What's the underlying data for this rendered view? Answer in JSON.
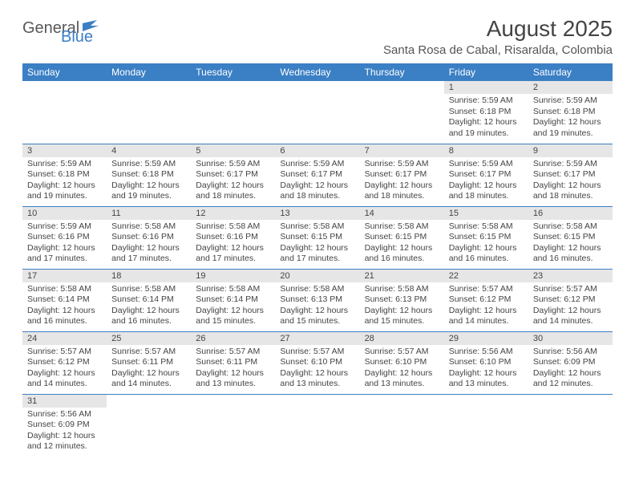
{
  "logo": {
    "word1": "General",
    "word2": "Blue"
  },
  "header": {
    "month_title": "August 2025",
    "location": "Santa Rosa de Cabal, Risaralda, Colombia"
  },
  "colors": {
    "brand_blue": "#3b7fc4",
    "header_row_bg": "#3b7fc4",
    "header_row_text": "#ffffff",
    "daynum_bg": "#e6e6e6",
    "row_divider": "#3b7fc4",
    "body_text": "#444444",
    "logo_gray": "#585858",
    "background": "#ffffff"
  },
  "typography": {
    "title_fontsize_pt": 21,
    "location_fontsize_pt": 11,
    "weekday_fontsize_pt": 9,
    "daynum_fontsize_pt": 8,
    "cell_fontsize_pt": 8
  },
  "calendar": {
    "weekdays": [
      "Sunday",
      "Monday",
      "Tuesday",
      "Wednesday",
      "Thursday",
      "Friday",
      "Saturday"
    ],
    "first_weekday_index": 5,
    "days": [
      {
        "n": 1,
        "sunrise": "5:59 AM",
        "sunset": "6:18 PM",
        "daylight": "12 hours and 19 minutes."
      },
      {
        "n": 2,
        "sunrise": "5:59 AM",
        "sunset": "6:18 PM",
        "daylight": "12 hours and 19 minutes."
      },
      {
        "n": 3,
        "sunrise": "5:59 AM",
        "sunset": "6:18 PM",
        "daylight": "12 hours and 19 minutes."
      },
      {
        "n": 4,
        "sunrise": "5:59 AM",
        "sunset": "6:18 PM",
        "daylight": "12 hours and 19 minutes."
      },
      {
        "n": 5,
        "sunrise": "5:59 AM",
        "sunset": "6:17 PM",
        "daylight": "12 hours and 18 minutes."
      },
      {
        "n": 6,
        "sunrise": "5:59 AM",
        "sunset": "6:17 PM",
        "daylight": "12 hours and 18 minutes."
      },
      {
        "n": 7,
        "sunrise": "5:59 AM",
        "sunset": "6:17 PM",
        "daylight": "12 hours and 18 minutes."
      },
      {
        "n": 8,
        "sunrise": "5:59 AM",
        "sunset": "6:17 PM",
        "daylight": "12 hours and 18 minutes."
      },
      {
        "n": 9,
        "sunrise": "5:59 AM",
        "sunset": "6:17 PM",
        "daylight": "12 hours and 18 minutes."
      },
      {
        "n": 10,
        "sunrise": "5:59 AM",
        "sunset": "6:16 PM",
        "daylight": "12 hours and 17 minutes."
      },
      {
        "n": 11,
        "sunrise": "5:58 AM",
        "sunset": "6:16 PM",
        "daylight": "12 hours and 17 minutes."
      },
      {
        "n": 12,
        "sunrise": "5:58 AM",
        "sunset": "6:16 PM",
        "daylight": "12 hours and 17 minutes."
      },
      {
        "n": 13,
        "sunrise": "5:58 AM",
        "sunset": "6:15 PM",
        "daylight": "12 hours and 17 minutes."
      },
      {
        "n": 14,
        "sunrise": "5:58 AM",
        "sunset": "6:15 PM",
        "daylight": "12 hours and 16 minutes."
      },
      {
        "n": 15,
        "sunrise": "5:58 AM",
        "sunset": "6:15 PM",
        "daylight": "12 hours and 16 minutes."
      },
      {
        "n": 16,
        "sunrise": "5:58 AM",
        "sunset": "6:15 PM",
        "daylight": "12 hours and 16 minutes."
      },
      {
        "n": 17,
        "sunrise": "5:58 AM",
        "sunset": "6:14 PM",
        "daylight": "12 hours and 16 minutes."
      },
      {
        "n": 18,
        "sunrise": "5:58 AM",
        "sunset": "6:14 PM",
        "daylight": "12 hours and 16 minutes."
      },
      {
        "n": 19,
        "sunrise": "5:58 AM",
        "sunset": "6:14 PM",
        "daylight": "12 hours and 15 minutes."
      },
      {
        "n": 20,
        "sunrise": "5:58 AM",
        "sunset": "6:13 PM",
        "daylight": "12 hours and 15 minutes."
      },
      {
        "n": 21,
        "sunrise": "5:58 AM",
        "sunset": "6:13 PM",
        "daylight": "12 hours and 15 minutes."
      },
      {
        "n": 22,
        "sunrise": "5:57 AM",
        "sunset": "6:12 PM",
        "daylight": "12 hours and 14 minutes."
      },
      {
        "n": 23,
        "sunrise": "5:57 AM",
        "sunset": "6:12 PM",
        "daylight": "12 hours and 14 minutes."
      },
      {
        "n": 24,
        "sunrise": "5:57 AM",
        "sunset": "6:12 PM",
        "daylight": "12 hours and 14 minutes."
      },
      {
        "n": 25,
        "sunrise": "5:57 AM",
        "sunset": "6:11 PM",
        "daylight": "12 hours and 14 minutes."
      },
      {
        "n": 26,
        "sunrise": "5:57 AM",
        "sunset": "6:11 PM",
        "daylight": "12 hours and 13 minutes."
      },
      {
        "n": 27,
        "sunrise": "5:57 AM",
        "sunset": "6:10 PM",
        "daylight": "12 hours and 13 minutes."
      },
      {
        "n": 28,
        "sunrise": "5:57 AM",
        "sunset": "6:10 PM",
        "daylight": "12 hours and 13 minutes."
      },
      {
        "n": 29,
        "sunrise": "5:56 AM",
        "sunset": "6:10 PM",
        "daylight": "12 hours and 13 minutes."
      },
      {
        "n": 30,
        "sunrise": "5:56 AM",
        "sunset": "6:09 PM",
        "daylight": "12 hours and 12 minutes."
      },
      {
        "n": 31,
        "sunrise": "5:56 AM",
        "sunset": "6:09 PM",
        "daylight": "12 hours and 12 minutes."
      }
    ],
    "labels": {
      "sunrise": "Sunrise:",
      "sunset": "Sunset:",
      "daylight": "Daylight:"
    }
  }
}
